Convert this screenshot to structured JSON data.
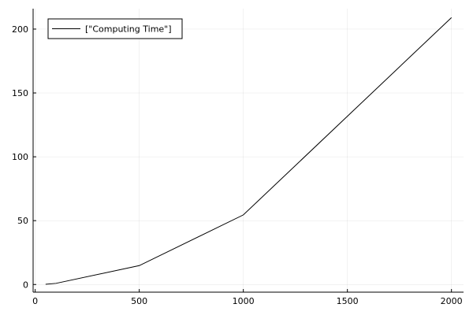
{
  "chart_data": {
    "type": "line",
    "title": "",
    "xlabel": "",
    "ylabel": "",
    "xlim": [
      -10,
      2058
    ],
    "ylim": [
      -6,
      216
    ],
    "x_ticks": [
      0,
      500,
      1000,
      1500,
      2000
    ],
    "y_ticks": [
      0,
      50,
      100,
      150,
      200
    ],
    "x_tick_labels": [
      "0",
      "500",
      "1000",
      "1500",
      "2000"
    ],
    "y_tick_labels": [
      "0",
      "50",
      "100",
      "150",
      "200"
    ],
    "grid": true,
    "legend": "top-left",
    "series": [
      {
        "name": "[\"Computing Time\"]",
        "color": "#000000",
        "x": [
          50,
          100,
          500,
          1000,
          2000
        ],
        "y": [
          0.2,
          0.9,
          14.8,
          54.5,
          209
        ]
      }
    ]
  }
}
